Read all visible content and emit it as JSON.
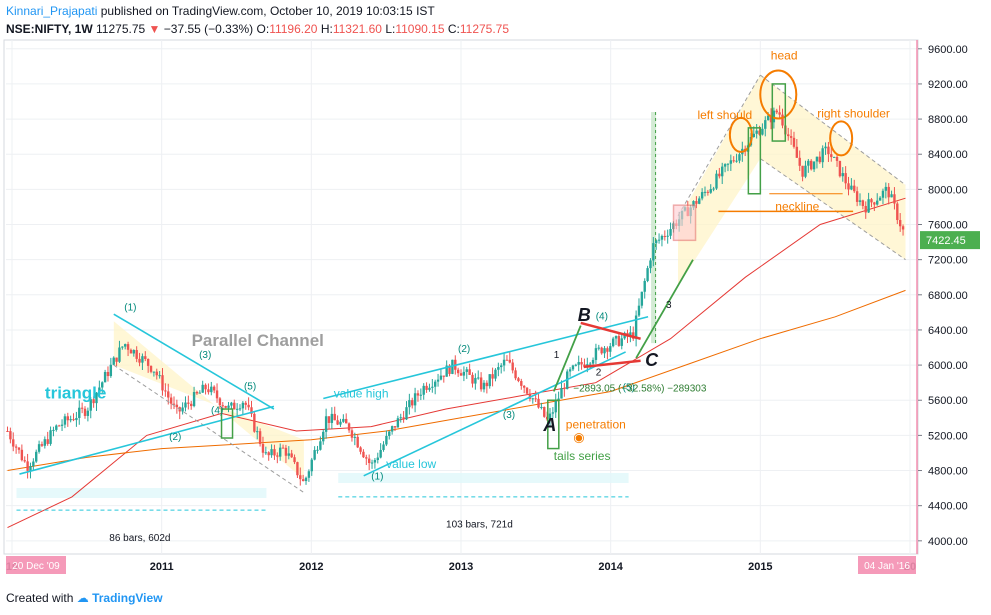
{
  "header": {
    "author": "Kinnari_Prajapati",
    "published": "published on TradingView.com, October 10, 2019 10:03:15 IST"
  },
  "symbol": {
    "ticker": "NSE:NIFTY, 1W",
    "last": "11275.75",
    "change": "−37.55 (−0.33%)",
    "o_label": "O:",
    "o": "11196.20",
    "h_label": "H:",
    "h": "11321.60",
    "l_label": "L:",
    "l": "11090.15",
    "c_label": "C:",
    "c": "11275.75"
  },
  "footer": {
    "created_with": "Created with",
    "brand": "TradingView"
  },
  "colors": {
    "up": "#26a69a",
    "down": "#ef5350",
    "red_ma": "#e53935",
    "orange_ma": "#ef6c00",
    "cyan": "#26c6da",
    "orange_ann": "#f57c00",
    "green_ann": "#43a047",
    "grid": "#eef0f3",
    "last_price_bg": "#4caf50",
    "date_marker_bg": "#f48fb1"
  },
  "chart_data": {
    "type": "candlestick",
    "title": "",
    "x_axis": {
      "ticks": [
        "10",
        "2011",
        "2012",
        "2013",
        "2014",
        "2015",
        "20"
      ],
      "tick_years": [
        2010,
        2011,
        2012,
        2013,
        2014,
        2015,
        2016
      ],
      "range_start_label": "20 Dec '09",
      "range_end_label": "04 Jan '16"
    },
    "y_axis": {
      "ticks": [
        "9600.00",
        "9200.00",
        "8800.00",
        "8400.00",
        "8000.00",
        "7600.00",
        "7200.00",
        "6800.00",
        "6400.00",
        "6000.00",
        "5600.00",
        "5200.00",
        "4800.00",
        "4400.00",
        "4000.00"
      ],
      "ylim": [
        3850,
        9700
      ],
      "last_price": "7422.45"
    },
    "price_path": [
      [
        2009.97,
        5250
      ],
      [
        2010.1,
        4850
      ],
      [
        2010.3,
        5300
      ],
      [
        2010.5,
        5500
      ],
      [
        2010.75,
        6250
      ],
      [
        2010.95,
        5950
      ],
      [
        2011.1,
        5450
      ],
      [
        2011.3,
        5750
      ],
      [
        2011.45,
        5500
      ],
      [
        2011.55,
        5600
      ],
      [
        2011.7,
        4950
      ],
      [
        2011.82,
        5050
      ],
      [
        2011.95,
        4650
      ],
      [
        2012.1,
        5400
      ],
      [
        2012.25,
        5300
      ],
      [
        2012.4,
        4850
      ],
      [
        2012.55,
        5300
      ],
      [
        2012.75,
        5750
      ],
      [
        2012.95,
        6000
      ],
      [
        2013.15,
        5750
      ],
      [
        2013.3,
        6050
      ],
      [
        2013.45,
        5700
      ],
      [
        2013.58,
        5350
      ],
      [
        2013.72,
        5900
      ],
      [
        2013.95,
        6200
      ],
      [
        2014.15,
        6350
      ],
      [
        2014.28,
        7350
      ],
      [
        2014.45,
        7650
      ],
      [
        2014.65,
        8000
      ],
      [
        2014.85,
        8400
      ],
      [
        2015.0,
        8700
      ],
      [
        2015.12,
        8900
      ],
      [
        2015.28,
        8200
      ],
      [
        2015.45,
        8450
      ],
      [
        2015.6,
        8000
      ],
      [
        2015.7,
        7800
      ],
      [
        2015.85,
        8000
      ],
      [
        2015.97,
        7450
      ]
    ],
    "moving_averages": [
      {
        "color": "red",
        "points": [
          [
            2009.97,
            4150
          ],
          [
            2010.4,
            4500
          ],
          [
            2010.9,
            5200
          ],
          [
            2011.4,
            5450
          ],
          [
            2011.9,
            5250
          ],
          [
            2012.4,
            5300
          ],
          [
            2012.9,
            5500
          ],
          [
            2013.4,
            5650
          ],
          [
            2013.9,
            5800
          ],
          [
            2014.4,
            6300
          ],
          [
            2014.9,
            7000
          ],
          [
            2015.4,
            7600
          ],
          [
            2015.97,
            7900
          ]
        ]
      },
      {
        "color": "orange",
        "points": [
          [
            2009.97,
            4800
          ],
          [
            2010.5,
            4950
          ],
          [
            2011.0,
            5050
          ],
          [
            2011.5,
            5100
          ],
          [
            2012.0,
            5150
          ],
          [
            2012.5,
            5250
          ],
          [
            2013.0,
            5400
          ],
          [
            2013.5,
            5550
          ],
          [
            2014.0,
            5700
          ],
          [
            2014.5,
            6000
          ],
          [
            2015.0,
            6300
          ],
          [
            2015.5,
            6550
          ],
          [
            2015.97,
            6850
          ]
        ]
      }
    ],
    "annotations": {
      "triangle": "triangle",
      "parallel_channel": "Parallel Channel",
      "value_high": "value high",
      "value_low": "value low",
      "wave_labels": [
        "(1)",
        "(2)",
        "(3)",
        "(4)",
        "(5)",
        "(1)",
        "(2)",
        "(3)",
        "(4)",
        "(5)"
      ],
      "abc": [
        "A",
        "B",
        "C"
      ],
      "small_numbers": [
        "1",
        "2",
        "3"
      ],
      "measure_text": "−2893.05 (−32.58%) −289303",
      "penetration": "penetration",
      "tails_series": "tails series",
      "head": "head",
      "left_shoulder": "left should",
      "right_shoulder": "right shoulder",
      "neckline": "neckline",
      "range1": "86 bars, 602d",
      "range2": "103 bars, 721d"
    }
  }
}
